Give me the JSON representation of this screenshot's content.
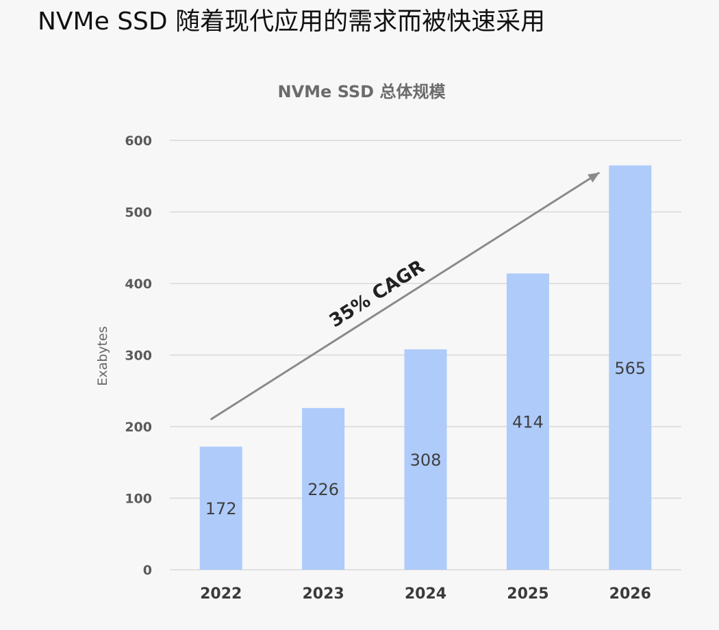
{
  "page": {
    "title": "NVMe SSD 随着现代应用的需求而被快速采用"
  },
  "chart_data": {
    "type": "bar",
    "title": "NVMe SSD 总体规模",
    "xlabel": "",
    "ylabel": "Exabytes",
    "categories": [
      "2022",
      "2023",
      "2024",
      "2025",
      "2026"
    ],
    "values": [
      172,
      226,
      308,
      414,
      565
    ],
    "data_labels": [
      "172",
      "226",
      "308",
      "414",
      "565"
    ],
    "ylim": [
      0,
      600
    ],
    "yticks": [
      0,
      100,
      200,
      300,
      400,
      500,
      600
    ],
    "grid": true,
    "bar_color": "#aecbfa",
    "annotation": {
      "text": "35% CAGR",
      "type": "arrow",
      "from": [
        "2022",
        210
      ],
      "to": [
        "2026",
        555
      ]
    }
  }
}
